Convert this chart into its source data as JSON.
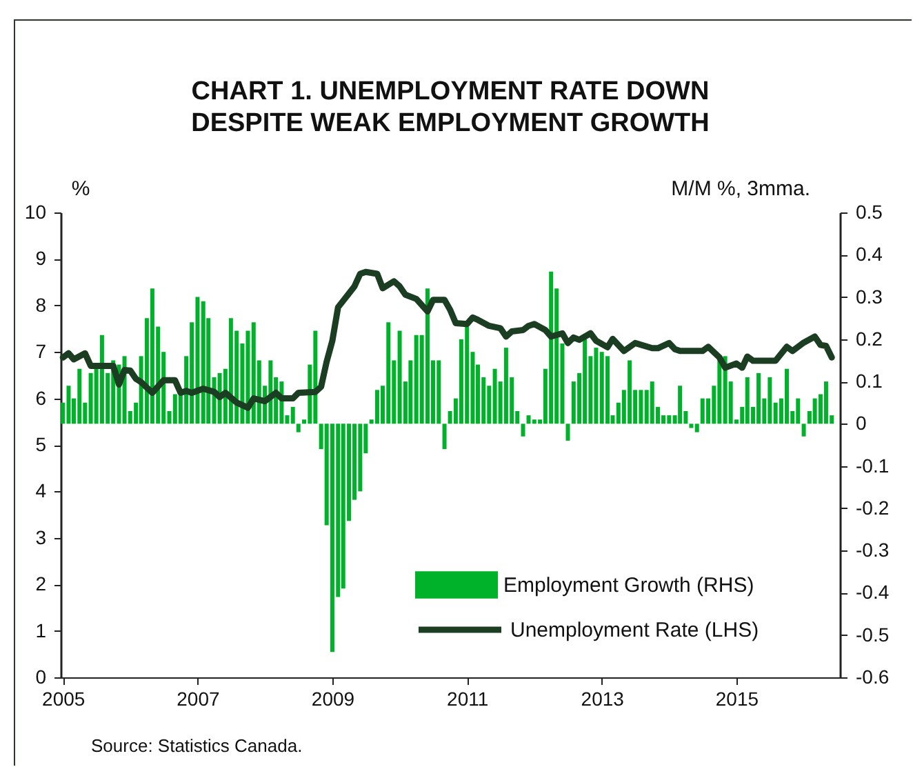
{
  "chart_data": {
    "type": "bar",
    "title": "CHART 1. UNEMPLOYMENT RATE DOWN DESPITE WEAK EMPLOYMENT GROWTH",
    "ylabel": "%",
    "y2label": "M/M %, 3mma.",
    "x": [
      "2005-01",
      "2005-02",
      "2005-03",
      "2005-04",
      "2005-05",
      "2005-06",
      "2005-07",
      "2005-08",
      "2005-09",
      "2005-10",
      "2005-11",
      "2005-12",
      "2006-01",
      "2006-02",
      "2006-03",
      "2006-04",
      "2006-05",
      "2006-06",
      "2006-07",
      "2006-08",
      "2006-09",
      "2006-10",
      "2006-11",
      "2006-12",
      "2007-01",
      "2007-02",
      "2007-03",
      "2007-04",
      "2007-05",
      "2007-06",
      "2007-07",
      "2007-08",
      "2007-09",
      "2007-10",
      "2007-11",
      "2007-12",
      "2008-01",
      "2008-02",
      "2008-03",
      "2008-04",
      "2008-05",
      "2008-06",
      "2008-07",
      "2008-08",
      "2008-09",
      "2008-10",
      "2008-11",
      "2008-12",
      "2009-01",
      "2009-02",
      "2009-03",
      "2009-04",
      "2009-05",
      "2009-06",
      "2009-07",
      "2009-08",
      "2009-09",
      "2009-10",
      "2009-11",
      "2009-12",
      "2010-01",
      "2010-02",
      "2010-03",
      "2010-04",
      "2010-05",
      "2010-06",
      "2010-07",
      "2010-08",
      "2010-09",
      "2010-10",
      "2010-11",
      "2010-12",
      "2011-01",
      "2011-02",
      "2011-03",
      "2011-04",
      "2011-05",
      "2011-06",
      "2011-07",
      "2011-08",
      "2011-09",
      "2011-10",
      "2011-11",
      "2011-12",
      "2012-01",
      "2012-02",
      "2012-03",
      "2012-04",
      "2012-05",
      "2012-06",
      "2012-07",
      "2012-08",
      "2012-09",
      "2012-10",
      "2012-11",
      "2012-12",
      "2013-01",
      "2013-02",
      "2013-03",
      "2013-04",
      "2013-05",
      "2013-06",
      "2013-07",
      "2013-08",
      "2013-09",
      "2013-10",
      "2013-11",
      "2013-12",
      "2014-01",
      "2014-02",
      "2014-03",
      "2014-04",
      "2014-05",
      "2014-06",
      "2014-07",
      "2014-08",
      "2014-09",
      "2014-10",
      "2014-11",
      "2014-12",
      "2015-01",
      "2015-02",
      "2015-03",
      "2015-04",
      "2015-05",
      "2015-06",
      "2015-07",
      "2015-08",
      "2015-09",
      "2015-10",
      "2015-11",
      "2015-12",
      "2016-01",
      "2016-02",
      "2016-03",
      "2016-04",
      "2016-05",
      "2016-06"
    ],
    "xlim": [
      "2004-12-20",
      "2016-07-15"
    ],
    "xticks": [
      {
        "value": "2005",
        "label": "2005"
      },
      {
        "value": "2007",
        "label": "2007"
      },
      {
        "value": "2009",
        "label": "2009"
      },
      {
        "value": "2011",
        "label": "2011"
      },
      {
        "value": "2013",
        "label": "2013"
      },
      {
        "value": "2015",
        "label": "2015"
      }
    ],
    "ylim": [
      0,
      10
    ],
    "yticks": [
      0,
      1,
      2,
      3,
      4,
      5,
      6,
      7,
      8,
      9,
      10
    ],
    "y2lim": [
      -0.6,
      0.5
    ],
    "y2ticks": [
      -0.6,
      -0.5,
      -0.4,
      -0.3,
      -0.2,
      -0.1,
      0,
      0.1,
      0.2,
      0.3,
      0.4,
      0.5
    ],
    "legend": "bottom right",
    "series": [
      {
        "name": "Employment Growth (RHS)",
        "axis": "y2",
        "color": "#00b22a",
        "values": [
          0.05,
          0.09,
          0.06,
          0.13,
          0.05,
          0.12,
          0.13,
          0.21,
          0.12,
          0.15,
          0.14,
          0.16,
          0.03,
          0.05,
          0.16,
          0.25,
          0.32,
          0.23,
          0.17,
          0.03,
          0.07,
          0.07,
          0.16,
          0.24,
          0.3,
          0.29,
          0.25,
          0.11,
          0.12,
          0.13,
          0.25,
          0.22,
          0.19,
          0.22,
          0.24,
          0.15,
          0.09,
          0.15,
          0.11,
          0.1,
          0.02,
          0.04,
          -0.02,
          0.01,
          0.14,
          0.22,
          -0.06,
          -0.24,
          -0.54,
          -0.41,
          -0.39,
          -0.23,
          -0.18,
          -0.16,
          -0.07,
          0.01,
          0.08,
          0.09,
          0.24,
          0.15,
          0.22,
          0.1,
          0.15,
          0.21,
          0.21,
          0.32,
          0.15,
          0.15,
          -0.06,
          0.03,
          0.06,
          0.2,
          0.23,
          0.17,
          0.14,
          0.11,
          0.09,
          0.13,
          0.1,
          0.18,
          0.11,
          0.03,
          -0.03,
          0.02,
          0.01,
          0.01,
          0.13,
          0.36,
          0.32,
          0.19,
          -0.04,
          0.1,
          0.12,
          0.2,
          0.16,
          0.18,
          0.17,
          0.16,
          0.02,
          0.05,
          0.08,
          0.15,
          0.08,
          0.08,
          0.08,
          0.1,
          0.04,
          0.02,
          0.02,
          0.02,
          0.09,
          0.03,
          -0.01,
          -0.02,
          0.06,
          0.06,
          0.09,
          0.16,
          0.16,
          0.1,
          0.01,
          0.04,
          0.11,
          0.04,
          0.12,
          0.06,
          0.11,
          0.05,
          0.06,
          0.13,
          0.03,
          0.06,
          -0.03,
          0.03,
          0.06,
          0.07,
          0.1,
          0.02
        ]
      },
      {
        "name": "Unemployment Rate (LHS)",
        "type": "line",
        "color": "#1b3d22",
        "x": [
          "2005-01",
          "2005-02",
          "2005-03",
          "2005-05",
          "2005-06",
          "2005-10",
          "2005-11",
          "2005-12",
          "2006-01",
          "2006-02",
          "2006-03",
          "2006-05",
          "2006-07",
          "2006-09",
          "2006-10",
          "2006-11",
          "2006-12",
          "2007-02",
          "2007-04",
          "2007-05",
          "2007-06",
          "2007-08",
          "2007-10",
          "2007-11",
          "2008-01",
          "2008-03",
          "2008-04",
          "2008-06",
          "2008-07",
          "2008-10",
          "2008-11",
          "2008-12",
          "2009-01",
          "2009-02",
          "2009-03",
          "2009-05",
          "2009-06",
          "2009-07",
          "2009-09",
          "2009-10",
          "2009-12",
          "2010-01",
          "2010-02",
          "2010-04",
          "2010-06",
          "2010-07",
          "2010-09",
          "2010-10",
          "2010-11",
          "2011-01",
          "2011-02",
          "2011-03",
          "2011-05",
          "2011-07",
          "2011-08",
          "2011-09",
          "2011-11",
          "2011-12",
          "2012-01",
          "2012-03",
          "2012-04",
          "2012-06",
          "2012-07",
          "2012-08",
          "2012-09",
          "2012-11",
          "2012-12",
          "2013-02",
          "2013-03",
          "2013-05",
          "2013-07",
          "2013-10",
          "2013-11",
          "2014-01",
          "2014-02",
          "2014-03",
          "2014-07",
          "2014-08",
          "2014-10",
          "2014-11",
          "2015-01",
          "2015-02",
          "2015-03",
          "2015-04",
          "2015-08",
          "2015-10",
          "2015-11",
          "2016-01",
          "2016-03",
          "2016-04",
          "2016-05",
          "2016-06"
        ],
        "values": [
          6.88,
          6.97,
          6.84,
          6.97,
          6.7,
          6.7,
          6.3,
          6.61,
          6.6,
          6.42,
          6.35,
          6.12,
          6.39,
          6.39,
          6.12,
          6.16,
          6.12,
          6.21,
          6.14,
          6.03,
          6.12,
          5.91,
          5.8,
          6.0,
          5.94,
          6.12,
          6.0,
          6.0,
          6.12,
          6.14,
          6.25,
          6.79,
          7.24,
          7.96,
          8.1,
          8.41,
          8.68,
          8.72,
          8.68,
          8.37,
          8.52,
          8.41,
          8.23,
          8.14,
          7.87,
          8.12,
          8.12,
          7.91,
          7.62,
          7.6,
          7.74,
          7.69,
          7.56,
          7.51,
          7.33,
          7.44,
          7.47,
          7.56,
          7.6,
          7.47,
          7.33,
          7.4,
          7.19,
          7.31,
          7.26,
          7.4,
          7.24,
          7.1,
          7.28,
          7.02,
          7.19,
          7.08,
          7.08,
          7.19,
          7.06,
          7.02,
          7.02,
          7.11,
          6.88,
          6.66,
          6.75,
          6.66,
          6.9,
          6.81,
          6.81,
          7.11,
          7.02,
          7.2,
          7.33,
          7.15,
          7.13,
          6.88
        ]
      }
    ],
    "annotations": [
      "Source: Statistics Canada."
    ]
  }
}
